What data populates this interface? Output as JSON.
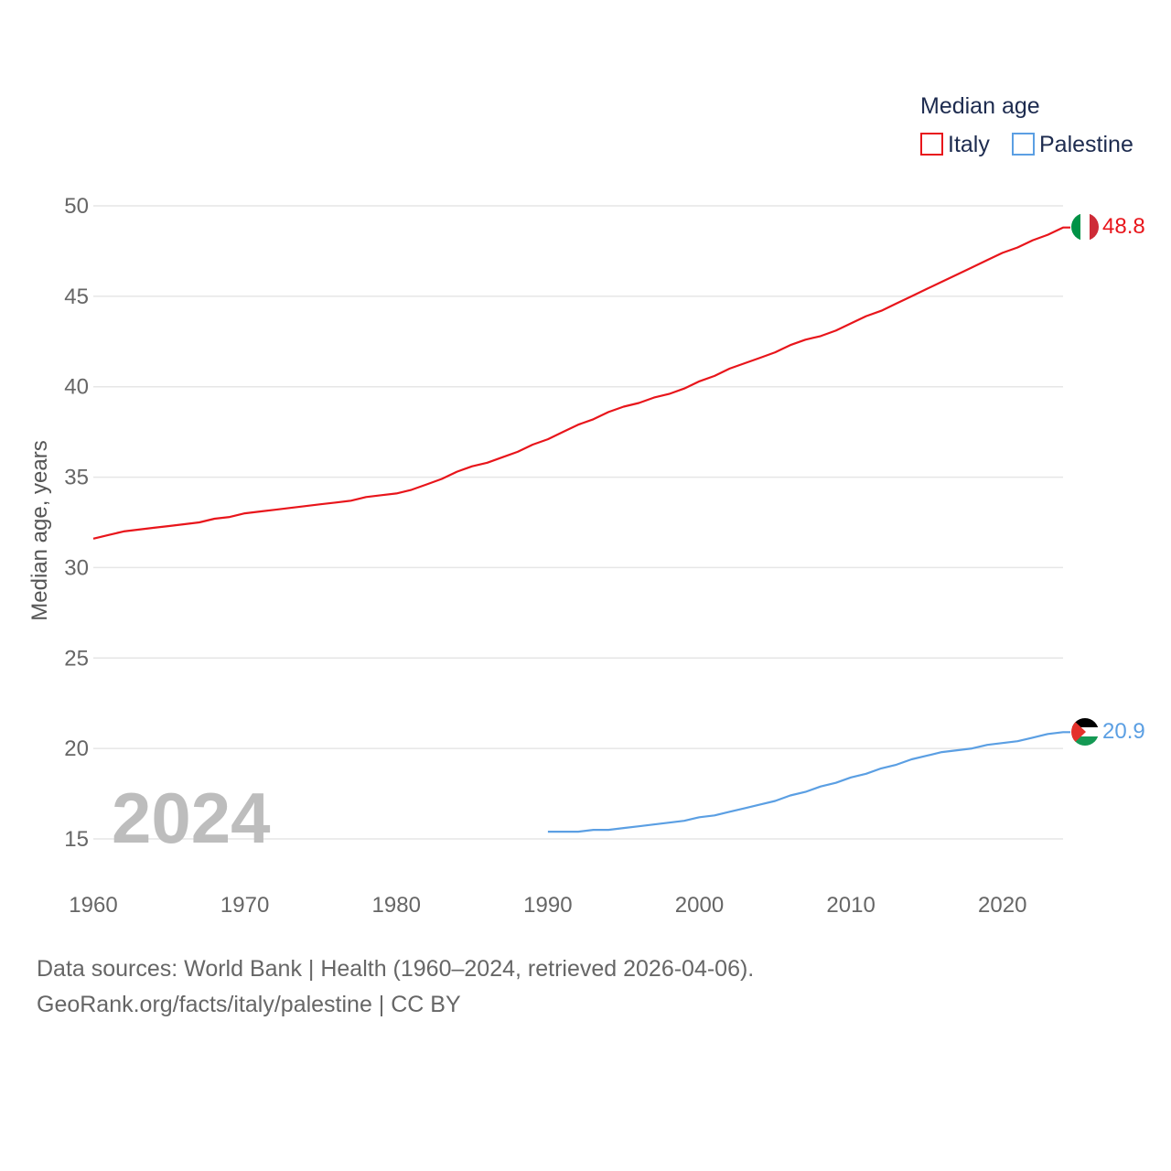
{
  "chart_data": {
    "type": "line",
    "title": "Median age",
    "ylabel": "Median age, years",
    "xlabel": "",
    "xlim": [
      1960,
      2024
    ],
    "ylim": [
      15,
      50
    ],
    "x_ticks": [
      1960,
      1970,
      1980,
      1990,
      2000,
      2010,
      2020
    ],
    "y_ticks": [
      15,
      20,
      25,
      30,
      35,
      40,
      45,
      50
    ],
    "grid": true,
    "legend_position": "top-right",
    "year_label": "2024",
    "series": [
      {
        "name": "Italy",
        "color": "#e8151b",
        "end_label": "48.8",
        "x": [
          1960,
          1961,
          1962,
          1963,
          1964,
          1965,
          1966,
          1967,
          1968,
          1969,
          1970,
          1971,
          1972,
          1973,
          1974,
          1975,
          1976,
          1977,
          1978,
          1979,
          1980,
          1981,
          1982,
          1983,
          1984,
          1985,
          1986,
          1987,
          1988,
          1989,
          1990,
          1991,
          1992,
          1993,
          1994,
          1995,
          1996,
          1997,
          1998,
          1999,
          2000,
          2001,
          2002,
          2003,
          2004,
          2005,
          2006,
          2007,
          2008,
          2009,
          2010,
          2011,
          2012,
          2013,
          2014,
          2015,
          2016,
          2017,
          2018,
          2019,
          2020,
          2021,
          2022,
          2023,
          2024
        ],
        "y": [
          31.6,
          31.8,
          32.0,
          32.1,
          32.2,
          32.3,
          32.4,
          32.5,
          32.7,
          32.8,
          33.0,
          33.1,
          33.2,
          33.3,
          33.4,
          33.5,
          33.6,
          33.7,
          33.9,
          34.0,
          34.1,
          34.3,
          34.6,
          34.9,
          35.3,
          35.6,
          35.8,
          36.1,
          36.4,
          36.8,
          37.1,
          37.5,
          37.9,
          38.2,
          38.6,
          38.9,
          39.1,
          39.4,
          39.6,
          39.9,
          40.3,
          40.6,
          41.0,
          41.3,
          41.6,
          41.9,
          42.3,
          42.6,
          42.8,
          43.1,
          43.5,
          43.9,
          44.2,
          44.6,
          45.0,
          45.4,
          45.8,
          46.2,
          46.6,
          47.0,
          47.4,
          47.7,
          48.1,
          48.4,
          48.8
        ]
      },
      {
        "name": "Palestine",
        "color": "#5b9fe3",
        "end_label": "20.9",
        "x": [
          1990,
          1991,
          1992,
          1993,
          1994,
          1995,
          1996,
          1997,
          1998,
          1999,
          2000,
          2001,
          2002,
          2003,
          2004,
          2005,
          2006,
          2007,
          2008,
          2009,
          2010,
          2011,
          2012,
          2013,
          2014,
          2015,
          2016,
          2017,
          2018,
          2019,
          2020,
          2021,
          2022,
          2023,
          2024
        ],
        "y": [
          15.4,
          15.4,
          15.4,
          15.5,
          15.5,
          15.6,
          15.7,
          15.8,
          15.9,
          16.0,
          16.2,
          16.3,
          16.5,
          16.7,
          16.9,
          17.1,
          17.4,
          17.6,
          17.9,
          18.1,
          18.4,
          18.6,
          18.9,
          19.1,
          19.4,
          19.6,
          19.8,
          19.9,
          20.0,
          20.2,
          20.3,
          20.4,
          20.6,
          20.8,
          20.9
        ]
      }
    ]
  },
  "footer": {
    "sources": "Data sources: World Bank | Health (1960–2024, retrieved 2026-04-06).",
    "credit": "GeoRank.org/facts/italy/palestine | CC BY"
  },
  "icons": {
    "italy_flag": "italy-flag-icon",
    "palestine_flag": "palestine-flag-icon"
  }
}
